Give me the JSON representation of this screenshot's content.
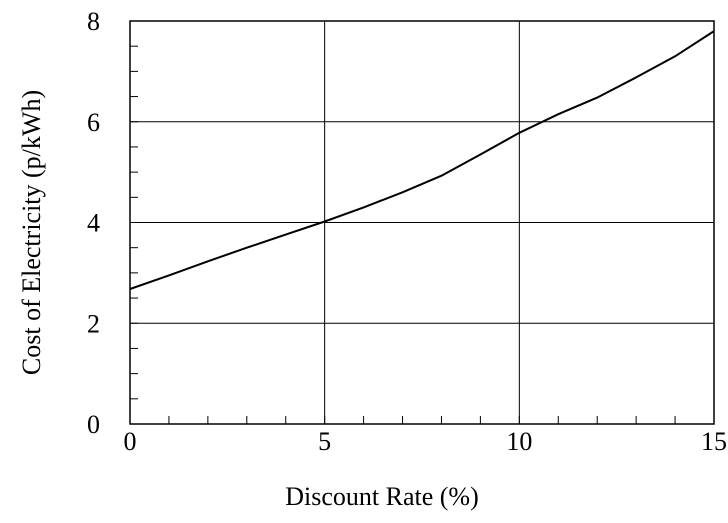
{
  "chart_data": {
    "type": "line",
    "xlabel": "Discount Rate (%)",
    "ylabel": "Cost of Electricity (p/kWh)",
    "xlim": [
      0,
      15
    ],
    "ylim": [
      0,
      8
    ],
    "x_ticks": [
      0,
      5,
      10,
      15
    ],
    "y_ticks": [
      0,
      2,
      4,
      6,
      8
    ],
    "x_minor_step": 1,
    "y_minor_step": 0.5,
    "grid": true,
    "series": [
      {
        "x": [
          0,
          1,
          2,
          3,
          4,
          5,
          6,
          7,
          8,
          9,
          10,
          11,
          12,
          13,
          14,
          15
        ],
        "y": [
          2.68,
          2.95,
          3.23,
          3.5,
          3.76,
          4.02,
          4.3,
          4.6,
          4.93,
          5.35,
          5.78,
          6.15,
          6.48,
          6.88,
          7.3,
          7.8
        ]
      }
    ]
  }
}
